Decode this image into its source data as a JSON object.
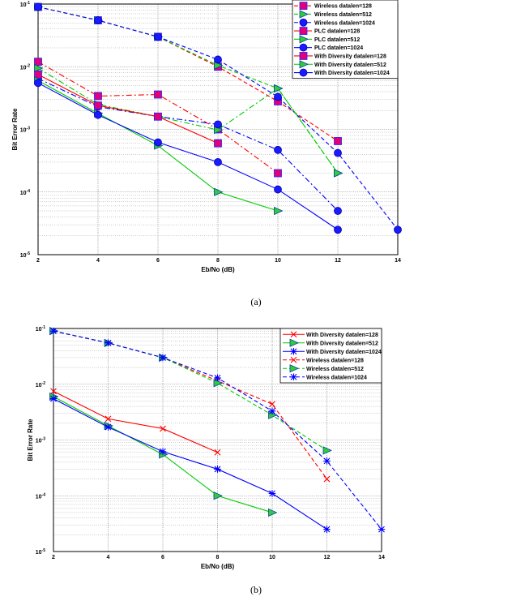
{
  "chart_data": [
    {
      "type": "line",
      "panel": "a",
      "caption": "(a)",
      "xlabel": "Eb/No (dB)",
      "ylabel": "Bit Error Rate",
      "scale_y": "log",
      "xlim": [
        2,
        14
      ],
      "ylim": [
        1e-05,
        0.1
      ],
      "x_ticks": [
        "2",
        "4",
        "6",
        "8",
        "10",
        "12",
        "14"
      ],
      "y_ticks": [
        {
          "base": "10",
          "exp": "-1"
        },
        {
          "base": "10",
          "exp": "-2"
        },
        {
          "base": "10",
          "exp": "-3"
        },
        {
          "base": "10",
          "exp": "-4"
        },
        {
          "base": "10",
          "exp": "-5"
        }
      ],
      "grid": true,
      "legend_position": "top-right",
      "series": [
        {
          "name": "Wireless datalen=128",
          "color": "#ff0000",
          "marker": "square",
          "dash": "dashed",
          "x": [
            2,
            4,
            6,
            8,
            10,
            12
          ],
          "y": [
            0.09,
            0.055,
            0.03,
            0.01,
            0.0028,
            0.00065
          ]
        },
        {
          "name": "Wireless datalen=512",
          "color": "#00cc00",
          "marker": "triangle",
          "dash": "dashed",
          "x": [
            2,
            4,
            6,
            8,
            10,
            12
          ],
          "y": [
            0.09,
            0.055,
            0.03,
            0.0105,
            0.0045,
            0.0002
          ]
        },
        {
          "name": "Wireless datalen=1024",
          "color": "#0000ff",
          "marker": "circle",
          "dash": "dashed",
          "x": [
            2,
            4,
            6,
            8,
            10,
            12,
            14
          ],
          "y": [
            0.09,
            0.055,
            0.03,
            0.013,
            0.0033,
            0.00042,
            2.5e-05
          ]
        },
        {
          "name": "PLC datalen=128",
          "color": "#ff0000",
          "marker": "square",
          "dash": "dashdot",
          "x": [
            2,
            4,
            6,
            8,
            10
          ],
          "y": [
            0.012,
            0.0034,
            0.0036,
            0.001,
            0.0002
          ]
        },
        {
          "name": "PLC datalen=512",
          "color": "#00cc00",
          "marker": "triangle",
          "dash": "dashdot",
          "x": [
            2,
            4,
            6,
            8,
            10,
            12
          ],
          "y": [
            0.0095,
            0.0025,
            0.0016,
            0.00098,
            0.0045,
            0.0002
          ]
        },
        {
          "name": "PLC datalen=1024",
          "color": "#0000ff",
          "marker": "circle",
          "dash": "dashdot",
          "x": [
            2,
            4,
            6,
            8,
            10,
            12
          ],
          "y": [
            0.0065,
            0.0023,
            0.0016,
            0.0012,
            0.00047,
            5e-05
          ]
        },
        {
          "name": "With Diversity datalen=128",
          "color": "#ff0000",
          "marker": "square",
          "dash": "solid",
          "x": [
            2,
            4,
            6,
            8
          ],
          "y": [
            0.0075,
            0.0024,
            0.0016,
            0.0006
          ]
        },
        {
          "name": "With Diversity datalen=512",
          "color": "#00cc00",
          "marker": "triangle",
          "dash": "solid",
          "x": [
            2,
            4,
            6,
            8,
            10
          ],
          "y": [
            0.006,
            0.0018,
            0.00055,
            0.0001,
            5e-05
          ]
        },
        {
          "name": "With Diversity datalen=1024",
          "color": "#0000ff",
          "marker": "circle",
          "dash": "solid",
          "x": [
            2,
            4,
            6,
            8,
            10,
            12
          ],
          "y": [
            0.0055,
            0.0017,
            0.00062,
            0.0003,
            0.00011,
            2.5e-05
          ]
        }
      ],
      "legend_order": [
        0,
        1,
        2,
        3,
        4,
        5,
        6,
        7,
        8
      ]
    },
    {
      "type": "line",
      "panel": "b",
      "caption": "(b)",
      "xlabel": "Eb/No (dB)",
      "ylabel": "Bit Error Rate",
      "scale_y": "log",
      "xlim": [
        2,
        14
      ],
      "ylim": [
        1e-05,
        0.1
      ],
      "x_ticks": [
        "2",
        "4",
        "6",
        "8",
        "10",
        "12",
        "14"
      ],
      "y_ticks": [
        {
          "base": "10",
          "exp": "-1"
        },
        {
          "base": "10",
          "exp": "-2"
        },
        {
          "base": "10",
          "exp": "-3"
        },
        {
          "base": "10",
          "exp": "-4"
        },
        {
          "base": "10",
          "exp": "-5"
        }
      ],
      "grid": true,
      "legend_position": "top-right",
      "series": [
        {
          "name": "With Diversity datalen=128",
          "color": "#ff0000",
          "marker": "x",
          "dash": "solid",
          "x": [
            2,
            4,
            6,
            8
          ],
          "y": [
            0.0075,
            0.0024,
            0.0016,
            0.0006
          ]
        },
        {
          "name": "With Diversity datalen=512",
          "color": "#00cc00",
          "marker": "triangle",
          "dash": "solid",
          "x": [
            2,
            4,
            6,
            8,
            10
          ],
          "y": [
            0.006,
            0.0018,
            0.00055,
            0.0001,
            5e-05
          ]
        },
        {
          "name": "With Diversity datalen=1024",
          "color": "#0000ff",
          "marker": "star",
          "dash": "solid",
          "x": [
            2,
            4,
            6,
            8,
            10,
            12
          ],
          "y": [
            0.0055,
            0.0017,
            0.00062,
            0.0003,
            0.00011,
            2.5e-05
          ]
        },
        {
          "name": "Wireless datalen=128",
          "color": "#ff0000",
          "marker": "x",
          "dash": "dashed",
          "x": [
            2,
            4,
            6,
            8,
            10,
            12
          ],
          "y": [
            0.09,
            0.055,
            0.03,
            0.0115,
            0.0044,
            0.0002
          ]
        },
        {
          "name": "Wireless datalen=512",
          "color": "#00cc00",
          "marker": "triangle",
          "dash": "dashed",
          "x": [
            2,
            4,
            6,
            8,
            10,
            12
          ],
          "y": [
            0.09,
            0.055,
            0.03,
            0.0105,
            0.0028,
            0.00065
          ]
        },
        {
          "name": "Wireless datalen=1024",
          "color": "#0000ff",
          "marker": "star",
          "dash": "dashed",
          "x": [
            2,
            4,
            6,
            8,
            10,
            12,
            14
          ],
          "y": [
            0.09,
            0.055,
            0.03,
            0.013,
            0.0033,
            0.00042,
            2.5e-05
          ]
        }
      ],
      "legend_order": [
        0,
        1,
        2,
        3,
        4,
        5
      ]
    }
  ]
}
